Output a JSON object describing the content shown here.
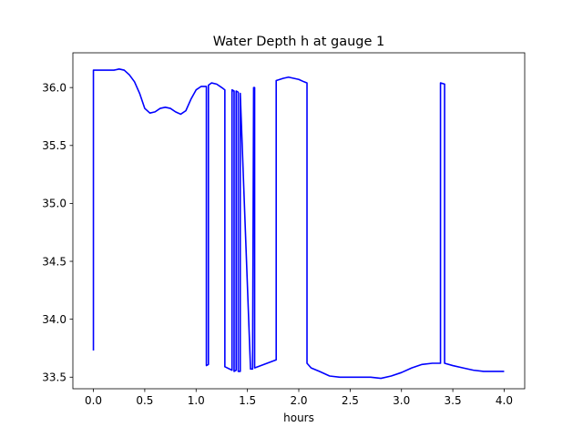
{
  "chart_data": {
    "type": "line",
    "title": "Water Depth h at gauge 1",
    "xlabel": "hours",
    "ylabel": "",
    "xlim": [
      -0.2,
      4.2
    ],
    "ylim": [
      33.4,
      36.3
    ],
    "xticks": [
      0.0,
      0.5,
      1.0,
      1.5,
      2.0,
      2.5,
      3.0,
      3.5,
      4.0
    ],
    "xtick_labels": [
      "0.0",
      "0.5",
      "1.0",
      "1.5",
      "2.0",
      "2.5",
      "3.0",
      "3.5",
      "4.0"
    ],
    "yticks": [
      33.5,
      34.0,
      34.5,
      35.0,
      35.5,
      36.0
    ],
    "ytick_labels": [
      "33.5",
      "34.0",
      "34.5",
      "35.0",
      "35.5",
      "36.0"
    ],
    "grid": false,
    "series": [
      {
        "color": "#0000ff",
        "x": [
          0.0,
          0.0,
          0.1,
          0.2,
          0.25,
          0.3,
          0.35,
          0.4,
          0.45,
          0.5,
          0.55,
          0.6,
          0.65,
          0.7,
          0.75,
          0.8,
          0.85,
          0.9,
          0.95,
          1.0,
          1.05,
          1.1,
          1.1,
          1.12,
          1.12,
          1.15,
          1.2,
          1.25,
          1.28,
          1.28,
          1.35,
          1.35,
          1.37,
          1.37,
          1.39,
          1.39,
          1.41,
          1.41,
          1.43,
          1.43,
          1.53,
          1.55,
          1.56,
          1.56,
          1.57,
          1.57,
          1.78,
          1.78,
          1.85,
          1.9,
          1.95,
          2.0,
          2.05,
          2.08,
          2.08,
          2.12,
          2.2,
          2.3,
          2.4,
          2.55,
          2.7,
          2.8,
          2.9,
          3.0,
          3.1,
          3.2,
          3.3,
          3.38,
          3.38,
          3.42,
          3.42,
          3.5,
          3.6,
          3.7,
          3.8,
          3.9,
          4.0
        ],
        "y": [
          33.73,
          36.15,
          36.15,
          36.15,
          36.16,
          36.15,
          36.11,
          36.05,
          35.95,
          35.82,
          35.78,
          35.79,
          35.82,
          35.83,
          35.82,
          35.79,
          35.77,
          35.8,
          35.9,
          35.98,
          36.01,
          36.01,
          33.6,
          33.61,
          36.02,
          36.04,
          36.03,
          36.0,
          35.98,
          33.59,
          33.56,
          35.98,
          35.97,
          33.55,
          33.56,
          35.97,
          35.96,
          33.55,
          33.55,
          35.95,
          33.57,
          33.57,
          35.98,
          36.0,
          36.0,
          33.58,
          33.65,
          36.06,
          36.08,
          36.09,
          36.08,
          36.07,
          36.05,
          36.04,
          33.62,
          33.58,
          33.55,
          33.51,
          33.5,
          33.5,
          33.5,
          33.49,
          33.51,
          33.54,
          33.58,
          33.61,
          33.62,
          33.62,
          36.04,
          36.03,
          33.62,
          33.6,
          33.58,
          33.56,
          33.55,
          33.55,
          33.55
        ]
      }
    ]
  }
}
